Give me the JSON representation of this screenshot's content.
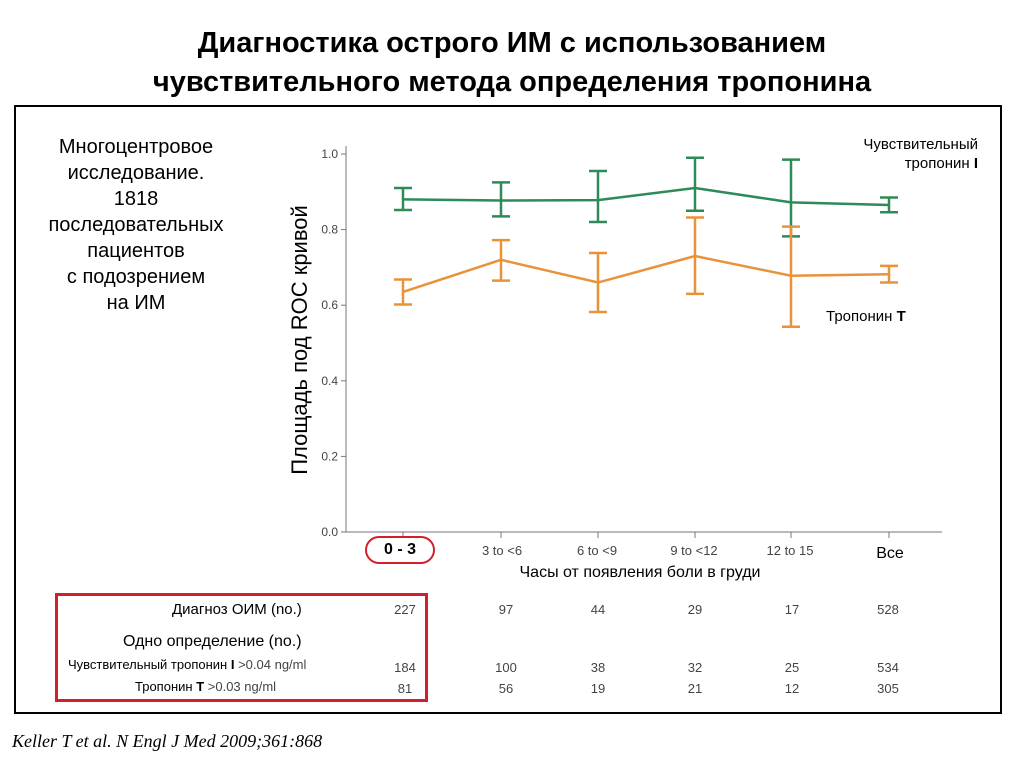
{
  "slide": {
    "title_line1": "Диагностика острого ИМ с использованием",
    "title_line2": "чувствительного метода определения тропонина",
    "study": [
      "Многоцентровое",
      "исследование.",
      "1818",
      "последовательных",
      "пациентов",
      "с подозрением",
      "на ИМ"
    ],
    "citation": "Keller T et al. N Engl J Med 2009;361:868"
  },
  "legend": {
    "ctni_line1": "Чувствительный",
    "ctni_line2_prefix": "тропонин ",
    "ctni_letter": "I",
    "ctnt_prefix": "Тропонин ",
    "ctnt_letter": "T"
  },
  "table": {
    "ami_label": "Диагноз ОИМ (no.)",
    "single_label": "Одно определение (no.)",
    "ctni_label_prefix": "Чувствительный тропонин ",
    "ctni_letter": "I",
    "ctni_threshold": ">0.04 ng/ml",
    "ctnt_label_prefix": "Тропонин ",
    "ctnt_letter": "T",
    "ctnt_threshold": ">0.03 ng/ml"
  },
  "chart_data": {
    "type": "line",
    "xlabel": "Часы от появления боли в груди",
    "ylabel": "Площадь под ROC кривой",
    "categories": [
      "0 - 3",
      "3 to <6",
      "6 to <9",
      "9 to <12",
      "12 to 15",
      "Все"
    ],
    "ylim": [
      0,
      1.0
    ],
    "yticks": [
      "0.0",
      "0.2",
      "0.4",
      "0.6",
      "0.8",
      "1.0"
    ],
    "grid": false,
    "series": [
      {
        "color": "#2e8b57",
        "values": [
          0.88,
          0.877,
          0.878,
          0.91,
          0.872,
          0.865
        ],
        "lower": [
          0.852,
          0.835,
          0.82,
          0.85,
          0.782,
          0.846
        ],
        "upper": [
          0.91,
          0.925,
          0.955,
          0.99,
          0.985,
          0.885
        ]
      },
      {
        "color": "#e8923a",
        "values": [
          0.635,
          0.72,
          0.66,
          0.73,
          0.678,
          0.682
        ],
        "lower": [
          0.602,
          0.665,
          0.582,
          0.63,
          0.543,
          0.66
        ],
        "upper": [
          0.668,
          0.772,
          0.738,
          0.832,
          0.808,
          0.704
        ]
      }
    ],
    "table_rows": [
      [
        227,
        97,
        44,
        29,
        17,
        528
      ],
      [
        184,
        100,
        38,
        32,
        25,
        534
      ],
      [
        81,
        56,
        19,
        21,
        12,
        305
      ]
    ]
  }
}
